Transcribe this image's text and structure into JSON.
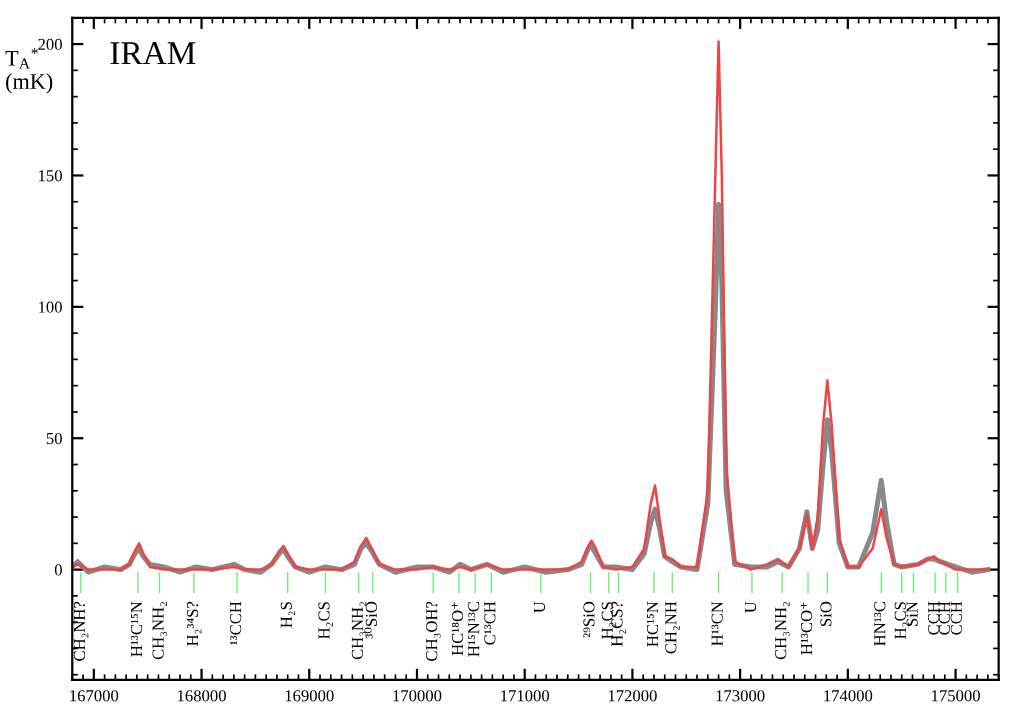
{
  "chart_data": {
    "type": "line",
    "title": "IRAM",
    "ylabel": "T$_{A}$$^{*}$\n(mK)",
    "xlim": [
      166800,
      175400
    ],
    "ylim": [
      -42,
      210
    ],
    "xticks": [
      167000,
      168000,
      169000,
      170000,
      171000,
      172000,
      173000,
      174000,
      175000
    ],
    "yticks": [
      0,
      50,
      100,
      150,
      200
    ],
    "grid": false,
    "line_style": "solid",
    "marker": "none",
    "x": [
      166800,
      166850,
      166950,
      167100,
      167250,
      167330,
      167380,
      167420,
      167460,
      167520,
      167650,
      167800,
      167950,
      168100,
      168300,
      168400,
      168550,
      168650,
      168720,
      168760,
      168800,
      168870,
      169000,
      169150,
      169300,
      169420,
      169480,
      169530,
      169580,
      169650,
      169800,
      170000,
      170150,
      170300,
      170400,
      170500,
      170650,
      170800,
      171000,
      171200,
      171400,
      171530,
      171590,
      171620,
      171660,
      171730,
      171850,
      172000,
      172110,
      172170,
      172210,
      172250,
      172300,
      172370,
      172450,
      172600,
      172700,
      172770,
      172800,
      172830,
      172870,
      172950,
      173100,
      173250,
      173350,
      173450,
      173550,
      173620,
      173670,
      173720,
      173770,
      173810,
      173850,
      173920,
      174000,
      174100,
      174230,
      174310,
      174360,
      174430,
      174500,
      174650,
      174740,
      174800,
      174860,
      175000,
      175150,
      175300
    ],
    "series": [
      {
        "color": "#888888",
        "values": [
          1,
          3,
          -1,
          1,
          0,
          2,
          6,
          8,
          5,
          2,
          1,
          -1,
          1,
          0,
          2,
          0,
          -1,
          2,
          6,
          8,
          5,
          1,
          -1,
          1,
          0,
          2,
          8,
          10,
          7,
          2,
          -1,
          1,
          1,
          -1,
          2,
          0,
          2,
          -1,
          1,
          -1,
          0,
          2,
          8,
          9,
          6,
          1,
          1,
          0,
          6,
          18,
          23,
          16,
          5,
          3,
          1,
          0,
          25,
          100,
          139,
          110,
          30,
          2,
          1,
          1,
          3,
          1,
          8,
          22,
          8,
          15,
          40,
          57,
          45,
          10,
          1,
          1,
          14,
          34,
          18,
          2,
          1,
          2,
          4,
          4,
          3,
          1,
          -1,
          0
        ]
      },
      {
        "color": "#ee4444",
        "values": [
          1,
          2,
          0,
          0,
          0,
          2,
          7,
          10,
          6,
          1,
          0,
          0,
          0,
          0,
          1,
          0,
          0,
          2,
          7,
          9,
          6,
          1,
          0,
          0,
          0,
          3,
          9,
          12,
          8,
          2,
          0,
          0,
          1,
          0,
          1,
          0,
          2,
          0,
          0,
          0,
          0,
          3,
          9,
          11,
          8,
          1,
          0,
          1,
          8,
          25,
          32,
          20,
          5,
          4,
          1,
          1,
          30,
          150,
          201,
          150,
          40,
          3,
          0,
          2,
          4,
          1,
          8,
          21,
          8,
          20,
          55,
          72,
          55,
          12,
          1,
          1,
          8,
          23,
          12,
          2,
          1,
          2,
          4,
          5,
          3,
          0,
          0,
          0
        ]
      },
      {
        "type": "bar",
        "color": "#66ee66",
        "x": [
          166880,
          167410,
          167610,
          167930,
          168330,
          168800,
          169150,
          169460,
          169590,
          170150,
          170390,
          170540,
          170690,
          171150,
          171610,
          171780,
          171870,
          172200,
          172370,
          172800,
          173110,
          173390,
          173630,
          173810,
          174310,
          174500,
          174610,
          174810,
          174910,
          175020
        ],
        "base": [
          -9,
          -9,
          -9,
          -9,
          -9,
          -9,
          -9,
          -9,
          -9,
          -9,
          -9,
          -9,
          -9,
          -9,
          -9,
          -9,
          -9,
          -9,
          -9,
          -9,
          -9,
          -9,
          -9,
          -9,
          -9,
          -9,
          -9,
          -9,
          -9,
          -9
        ],
        "values": [
          8,
          8,
          8,
          8,
          8,
          8,
          8,
          8,
          8,
          8,
          8,
          8,
          8,
          8,
          8,
          8,
          8,
          8,
          8,
          8,
          8,
          8,
          8,
          8,
          8,
          8,
          8,
          8,
          8,
          8
        ]
      }
    ],
    "annotations": [
      {
        "text": "CH₂NH?",
        "x": 166880,
        "y": -12
      },
      {
        "text": "H¹³C¹⁵N",
        "x": 167410,
        "y": -12
      },
      {
        "text": "CH₃NH₂",
        "x": 167610,
        "y": -12
      },
      {
        "text": "H₂³⁴S?",
        "x": 167930,
        "y": -12
      },
      {
        "text": "¹³CCH",
        "x": 168330,
        "y": -12
      },
      {
        "text": "H₂S",
        "x": 168800,
        "y": -12
      },
      {
        "text": "H₂CS",
        "x": 169150,
        "y": -12
      },
      {
        "text": "CH₃NH₂",
        "x": 169460,
        "y": -12
      },
      {
        "text": "³⁰SiO",
        "x": 169590,
        "y": -12
      },
      {
        "text": "CH₃OH?",
        "x": 170150,
        "y": -12
      },
      {
        "text": "HC¹⁸O⁺",
        "x": 170390,
        "y": -12
      },
      {
        "text": "H¹⁵N¹³C",
        "x": 170540,
        "y": -12
      },
      {
        "text": "C¹³CH",
        "x": 170690,
        "y": -12
      },
      {
        "text": "U",
        "x": 171150,
        "y": -12
      },
      {
        "text": "²⁹SiO",
        "x": 171610,
        "y": -12
      },
      {
        "text": "H₂CS",
        "x": 171780,
        "y": -12
      },
      {
        "text": "H₂CS?",
        "x": 171870,
        "y": -12
      },
      {
        "text": "HC¹⁵N",
        "x": 172200,
        "y": -12
      },
      {
        "text": "CH₂NH",
        "x": 172370,
        "y": -12
      },
      {
        "text": "H¹³CN",
        "x": 172800,
        "y": -12
      },
      {
        "text": "U",
        "x": 173110,
        "y": -12
      },
      {
        "text": "CH₃NH₂",
        "x": 173390,
        "y": -12
      },
      {
        "text": "H¹³CO⁺",
        "x": 173630,
        "y": -12
      },
      {
        "text": "SiO",
        "x": 173810,
        "y": -12
      },
      {
        "text": "HN¹³C",
        "x": 174310,
        "y": -12
      },
      {
        "text": "H₂CS",
        "x": 174500,
        "y": -12
      },
      {
        "text": "SiN",
        "x": 174610,
        "y": -12
      },
      {
        "text": "CCH",
        "x": 174810,
        "y": -12
      },
      {
        "text": "CCH",
        "x": 174910,
        "y": -12
      },
      {
        "text": "CCH",
        "x": 175020,
        "y": -12
      }
    ]
  }
}
